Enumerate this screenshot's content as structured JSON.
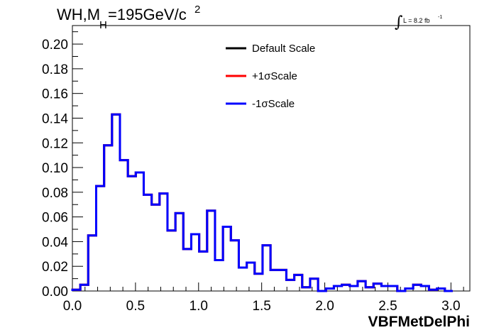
{
  "chart_data": {
    "type": "line",
    "title_main": "WH,M",
    "title_sub": "H",
    "title_rest": "=195GeV/c",
    "title_sup": "2",
    "lumi_label": "L = 8.2 fb",
    "lumi_sup": "-1",
    "xlabel": "VBFMetDelPhi",
    "xlim": [
      0.0,
      3.15
    ],
    "ylim": [
      0.0,
      0.215
    ],
    "x_ticks": [
      "0.0",
      "0.5",
      "1.0",
      "1.5",
      "2.0",
      "2.5",
      "3.0"
    ],
    "y_ticks": [
      "0.00",
      "0.02",
      "0.04",
      "0.06",
      "0.08",
      "0.10",
      "0.12",
      "0.14",
      "0.16",
      "0.18",
      "0.20"
    ],
    "legend_position": "top-center",
    "bin_width": 0.0628,
    "series": [
      {
        "name": "Default Scale",
        "color": "#000000",
        "values": [
          0.001,
          0.005,
          0.045,
          0.085,
          0.118,
          0.143,
          0.106,
          0.093,
          0.096,
          0.078,
          0.07,
          0.079,
          0.049,
          0.063,
          0.034,
          0.046,
          0.032,
          0.065,
          0.025,
          0.052,
          0.041,
          0.019,
          0.023,
          0.014,
          0.037,
          0.017,
          0.017,
          0.009,
          0.013,
          0.003,
          0.01,
          0.0,
          0.002,
          0.004,
          0.005,
          0.004,
          0.008,
          0.003,
          0.006,
          0.004,
          0.004,
          0.0,
          0.002,
          0.005,
          0.004,
          0.001,
          0.002,
          0.0
        ]
      },
      {
        "name": "+1σScale",
        "color": "#ff0000",
        "values": [
          0.001,
          0.005,
          0.045,
          0.085,
          0.118,
          0.143,
          0.106,
          0.093,
          0.096,
          0.078,
          0.07,
          0.079,
          0.049,
          0.063,
          0.034,
          0.046,
          0.032,
          0.065,
          0.025,
          0.052,
          0.041,
          0.019,
          0.023,
          0.014,
          0.037,
          0.017,
          0.017,
          0.009,
          0.013,
          0.003,
          0.01,
          0.0,
          0.002,
          0.004,
          0.005,
          0.004,
          0.008,
          0.003,
          0.006,
          0.004,
          0.004,
          0.0,
          0.002,
          0.005,
          0.004,
          0.001,
          0.002,
          0.0
        ]
      },
      {
        "name": "-1σScale",
        "color": "#0000ff",
        "values": [
          0.001,
          0.005,
          0.045,
          0.085,
          0.118,
          0.143,
          0.106,
          0.093,
          0.096,
          0.078,
          0.07,
          0.079,
          0.049,
          0.063,
          0.034,
          0.046,
          0.032,
          0.065,
          0.025,
          0.052,
          0.041,
          0.019,
          0.023,
          0.014,
          0.037,
          0.017,
          0.017,
          0.009,
          0.013,
          0.003,
          0.01,
          0.0,
          0.002,
          0.004,
          0.005,
          0.004,
          0.008,
          0.003,
          0.006,
          0.004,
          0.004,
          0.0,
          0.002,
          0.005,
          0.004,
          0.001,
          0.002,
          0.0
        ]
      }
    ]
  }
}
